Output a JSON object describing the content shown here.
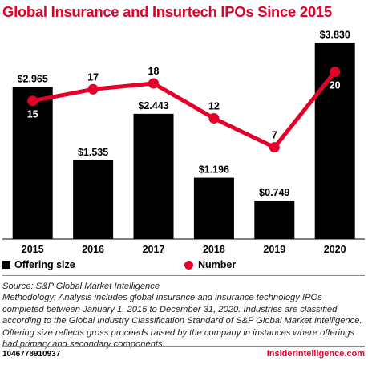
{
  "title": "Global Insurance and Insurtech IPOs Since 2015",
  "chart_data": {
    "type": "bar",
    "categories": [
      "2015",
      "2016",
      "2017",
      "2018",
      "2019",
      "2020"
    ],
    "series": [
      {
        "name": "Offering size",
        "type": "bar",
        "values": [
          2.965,
          1.535,
          2.443,
          1.196,
          0.749,
          3.83
        ],
        "labels": [
          "$2.965",
          "$1.535",
          "$2.443",
          "$1.196",
          "$0.749",
          "$3.830"
        ],
        "color": "#000000"
      },
      {
        "name": "Number",
        "type": "line",
        "values": [
          15,
          17,
          18,
          12,
          7,
          20
        ],
        "labels": [
          "15",
          "17",
          "18",
          "12",
          "7",
          "20"
        ],
        "color": "#e4002b"
      }
    ],
    "xlabel": "",
    "ylabel": "",
    "bar_ylim": [
      0,
      4.1
    ],
    "line_ylim": [
      -8.8,
      27.4
    ],
    "grid": false,
    "legend_position": "bottom"
  },
  "source": "Source: S&P Global Market Intelligence",
  "methodology": "Methodology: Analysis includes global insurance and insurance technology IPOs completed between January 1, 2015 to December 31, 2020. Industries are classified according to the Global Industry Classification Standard of S&P Global Market Intelligence. Offering size reflects gross proceeds raised by the company in instances where offerings had primary and secondary components.",
  "footer": {
    "id": "1046778910937",
    "brand": "InsiderIntelligence.com"
  },
  "colors": {
    "accent": "#e4002b",
    "bar": "#000000"
  }
}
